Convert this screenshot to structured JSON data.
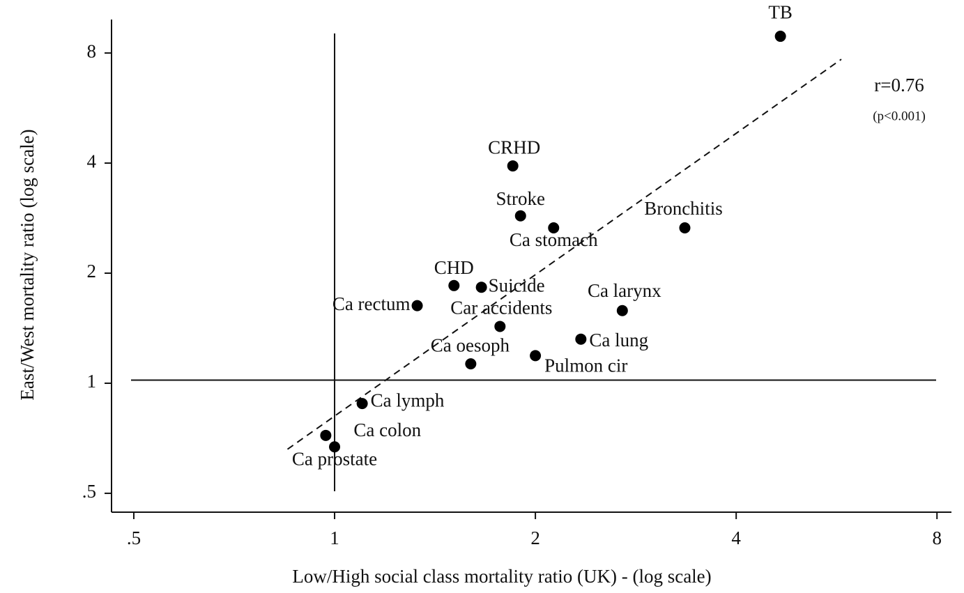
{
  "chart_data": {
    "type": "scatter",
    "xlabel": "Low/High social class mortality ratio (UK) - (log scale)",
    "ylabel": "East/West mortality ratio (log scale)",
    "labels": [
      "TB",
      "CRHD",
      "Stroke",
      "Ca stomach",
      "Bronchitis",
      "CHD",
      "Suicide",
      "Ca rectum",
      "Ca larynx",
      "Car accidents",
      "Ca lung",
      "Ca oesoph",
      "Pulmon cir",
      "Ca lymph",
      "Ca colon",
      "Ca prostate"
    ],
    "x": [
      4.66,
      1.85,
      1.9,
      2.13,
      3.35,
      1.51,
      1.66,
      1.33,
      2.7,
      1.77,
      2.34,
      1.6,
      2.0,
      1.1,
      0.97,
      1.0
    ],
    "values": [
      8.89,
      3.93,
      2.87,
      2.66,
      2.66,
      1.85,
      1.83,
      1.63,
      1.58,
      1.43,
      1.32,
      1.13,
      1.19,
      0.88,
      0.72,
      0.67
    ],
    "color": "#000000",
    "xlog": true,
    "ylog": true,
    "xlim": [
      0.463,
      8.41
    ],
    "ylim": [
      0.444,
      9.88
    ],
    "xticks": [
      {
        "value": 0.5,
        "label": ".5"
      },
      1,
      2,
      4,
      8
    ],
    "yticks": [
      {
        "value": 0.5,
        "label": ".5"
      },
      1,
      2,
      4,
      8
    ],
    "reference_lines": {
      "x": 1,
      "y": 1.02
    },
    "fit_line": {
      "x": [
        0.85,
        5.75
      ],
      "y": [
        0.66,
        7.69
      ]
    },
    "annotations": [
      "r=0.76",
      "(p<0.001)"
    ]
  }
}
